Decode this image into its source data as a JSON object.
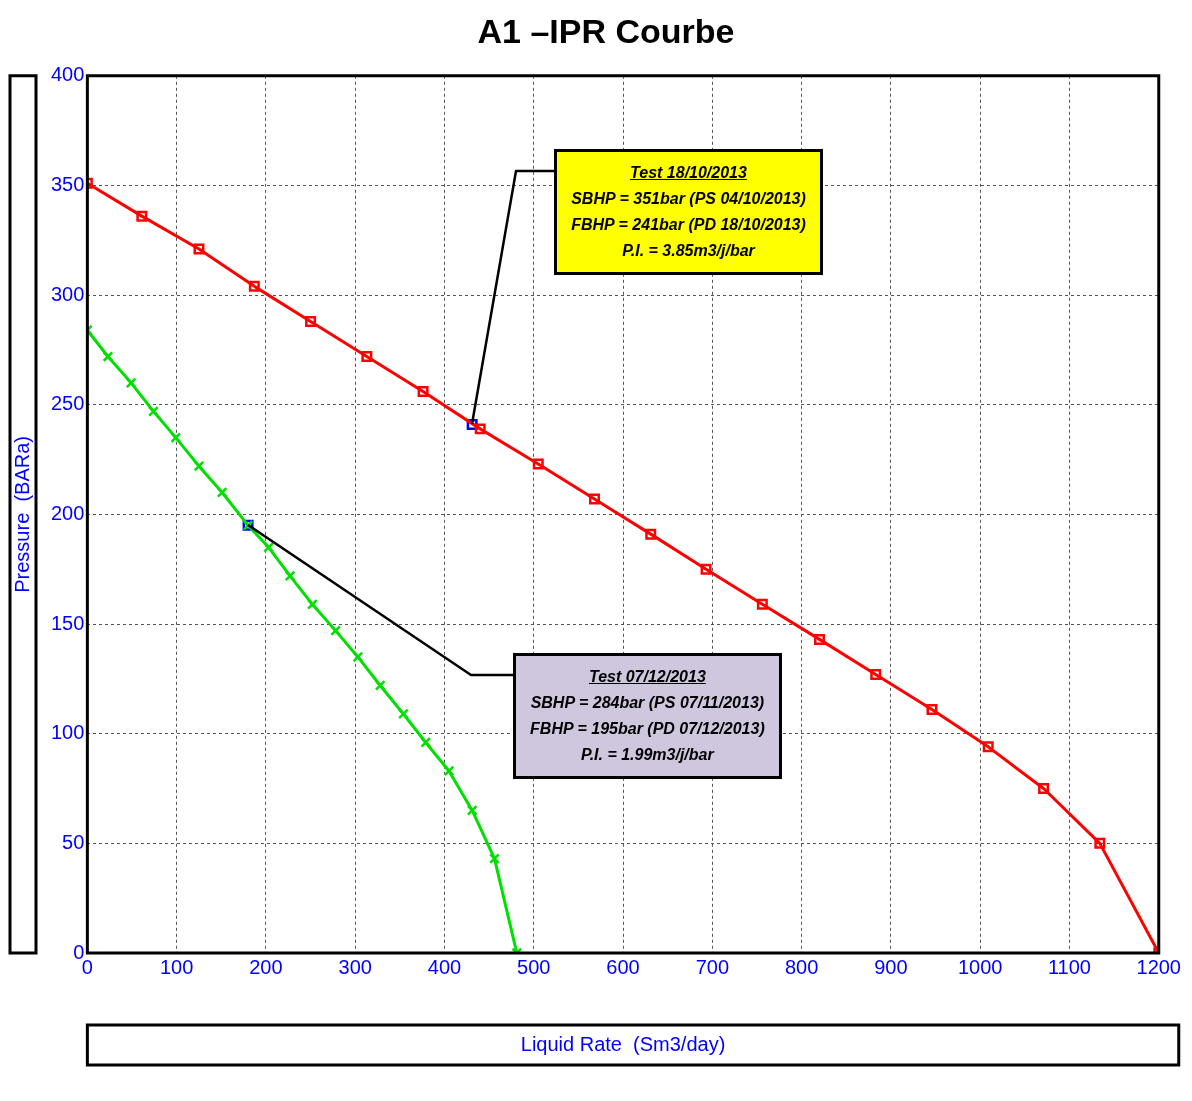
{
  "chart_data": {
    "type": "line",
    "title": "A1 –IPR Courbe",
    "xlabel": "Liquid Rate  (Sm3/day)",
    "ylabel": "Pressure  (BARa)",
    "xlim": [
      0,
      1200
    ],
    "ylim": [
      0,
      400
    ],
    "xticks": [
      0,
      100,
      200,
      300,
      400,
      500,
      600,
      700,
      800,
      900,
      1000,
      1100,
      1200
    ],
    "yticks": [
      0,
      50,
      100,
      150,
      200,
      250,
      300,
      350,
      400
    ],
    "grid": true,
    "legend": false,
    "line_style": "solid",
    "series": [
      {
        "color": "#ff0000",
        "marker": "square",
        "x": [
          0,
          61,
          125,
          187,
          250,
          313,
          376,
          440,
          505,
          568,
          631,
          693,
          756,
          820,
          883,
          946,
          1009,
          1071,
          1134,
          1200
        ],
        "values": [
          351,
          336,
          321,
          304,
          288,
          272,
          256,
          239,
          223,
          207,
          191,
          175,
          159,
          143,
          127,
          111,
          94,
          75,
          50,
          0
        ]
      },
      {
        "color": "#00e000",
        "marker": "cross",
        "x": [
          0,
          23,
          49,
          74,
          99,
          125,
          151,
          180,
          203,
          227,
          252,
          278,
          303,
          328,
          354,
          379,
          405,
          431,
          456,
          481
        ],
        "values": [
          284,
          272,
          260,
          247,
          235,
          222,
          210,
          195,
          185,
          172,
          159,
          147,
          135,
          122,
          109,
          96,
          83,
          65,
          43,
          0
        ]
      },
      {
        "type": "scatter",
        "color": "#0000ff",
        "marker": "square",
        "x": [
          431
        ],
        "values": [
          241
        ]
      },
      {
        "type": "scatter",
        "color": "#0000ff",
        "marker": "square",
        "x": [
          180
        ],
        "values": [
          195
        ]
      }
    ],
    "annotations": [
      {
        "text": "Test 18/10/2013\nSBHP = 351bar (PS 04/10/2013)\nFBHP = 241bar (PD 18/10/2013)\nP.I. = 3.85m3/j/bar",
        "x": 431,
        "y": 241
      },
      {
        "text": "Test 07/12/2013\nSBHP = 284bar (PS 07/11/2013)\nFBHP = 195bar (PD 07/12/2013)\nP.I. = 1.99m3/j/bar",
        "x": 180,
        "y": 195
      }
    ]
  }
}
